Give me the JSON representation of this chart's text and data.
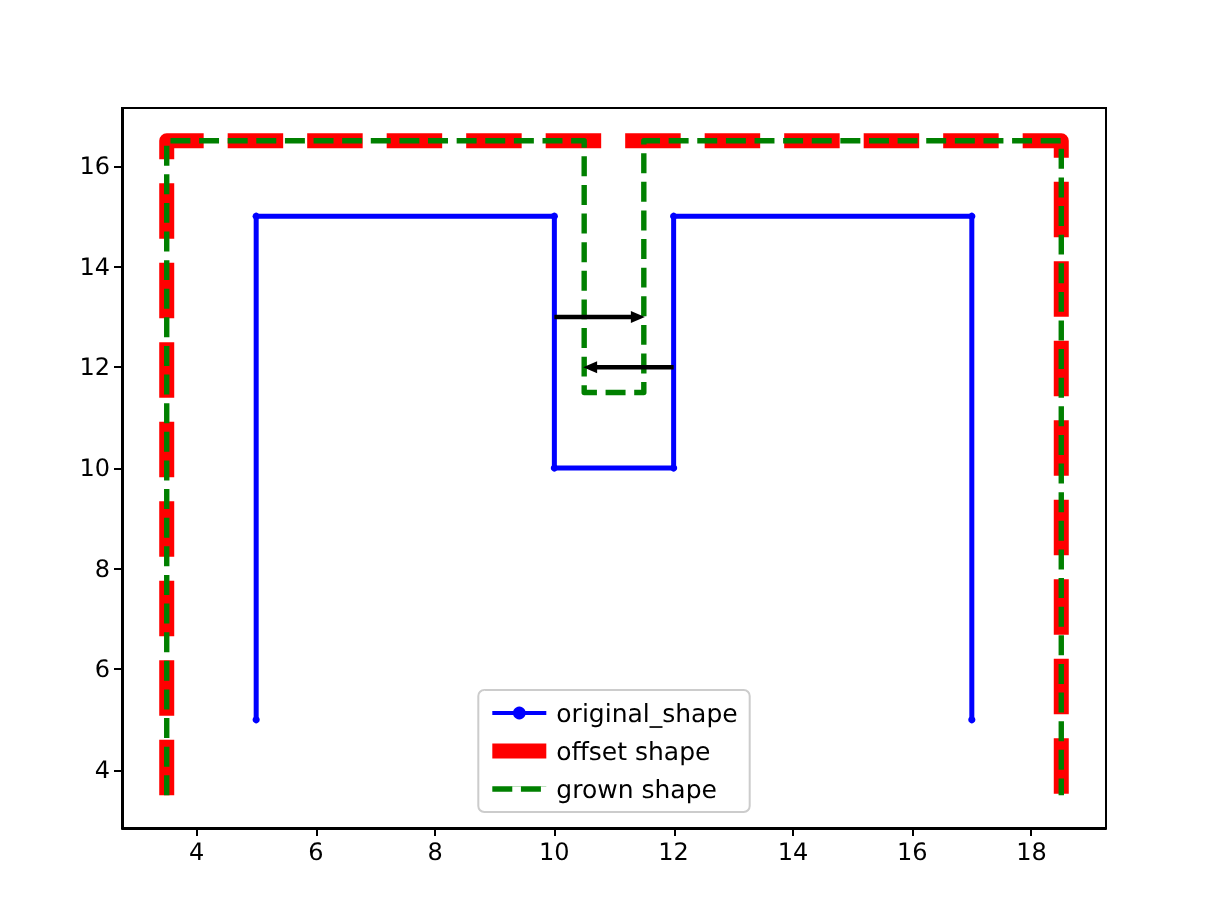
{
  "chart_data": {
    "type": "line",
    "xlim": [
      2.75,
      19.25
    ],
    "ylim": [
      2.85,
      17.15
    ],
    "xticks": [
      4,
      6,
      8,
      10,
      12,
      14,
      16,
      18
    ],
    "yticks": [
      4,
      6,
      8,
      10,
      12,
      14,
      16
    ],
    "legend": "bottom",
    "series": [
      {
        "name": "original_shape",
        "color": "#0000ff",
        "marker": "circle",
        "line_style": "solid",
        "x": [
          5,
          5,
          10,
          10,
          12,
          12,
          17,
          17
        ],
        "values": [
          5,
          15,
          15,
          10,
          10,
          15,
          15,
          5
        ]
      },
      {
        "name": "offset shape",
        "color": "#ff0000",
        "marker": "none",
        "line_style": "dashed",
        "x": [
          3.5,
          3.5,
          18.5,
          18.5
        ],
        "values": [
          3.5,
          16.5,
          16.5,
          3.5
        ]
      },
      {
        "name": "grown shape",
        "color": "#008000",
        "marker": "none",
        "line_style": "dashed",
        "x": [
          3.5,
          3.5,
          10.5,
          10.5,
          11.5,
          11.5,
          18.5,
          18.5
        ],
        "values": [
          3.5,
          16.5,
          16.5,
          11.5,
          11.5,
          16.5,
          16.5,
          3.5
        ]
      },
      {
        "color": "#000000",
        "marker": "triangle",
        "line_style": "solid",
        "x": [
          10,
          11.4
        ],
        "values": [
          13,
          13
        ]
      },
      {
        "color": "#000000",
        "marker": "triangle",
        "line_style": "solid",
        "x": [
          12,
          10.6
        ],
        "values": [
          12,
          12
        ]
      }
    ]
  }
}
